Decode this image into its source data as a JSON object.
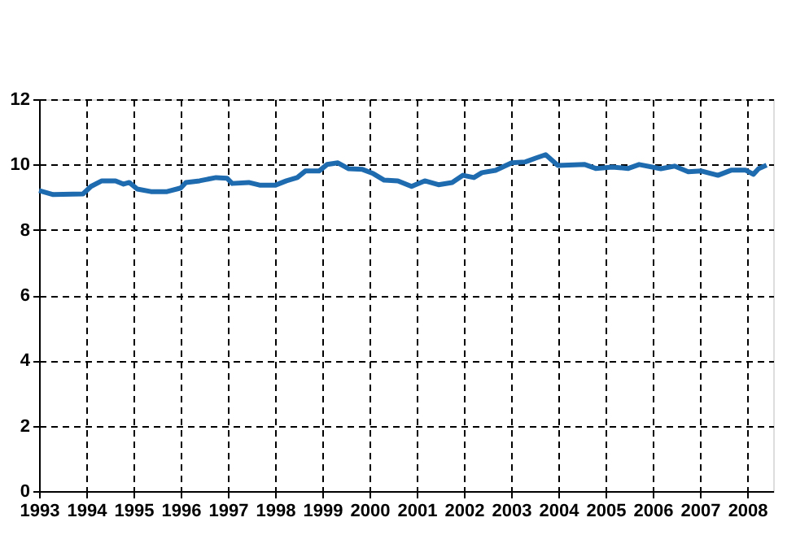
{
  "chart_data": {
    "type": "line",
    "xlim": [
      1993,
      2008.55
    ],
    "xticks": [
      1993,
      1994,
      1995,
      1996,
      1997,
      1998,
      1999,
      2000,
      2001,
      2002,
      2003,
      2004,
      2005,
      2006,
      2007,
      2008
    ],
    "ylim": [
      0,
      12
    ],
    "yticks": [
      0,
      2,
      4,
      6,
      8,
      10,
      12
    ],
    "grid": true,
    "marker": "none",
    "line_style": "solid",
    "series": [
      {
        "color": "#1f6bb0",
        "x": [
          1993.0,
          1993.3,
          1993.93,
          1994.1,
          1994.33,
          1994.62,
          1994.79,
          1994.91,
          1995.08,
          1995.37,
          1995.71,
          1996.0,
          1996.11,
          1996.4,
          1996.75,
          1996.98,
          1997.09,
          1997.44,
          1997.67,
          1998.01,
          1998.24,
          1998.47,
          1998.64,
          1998.93,
          1999.1,
          1999.33,
          1999.56,
          1999.85,
          2000.08,
          2000.31,
          2000.6,
          2000.89,
          2001.17,
          2001.46,
          2001.75,
          2001.98,
          2002.21,
          2002.38,
          2002.67,
          2003.01,
          2003.3,
          2003.53,
          2003.73,
          2003.99,
          2004.56,
          2004.79,
          2005.14,
          2005.48,
          2005.71,
          2006.17,
          2006.46,
          2006.75,
          2007.03,
          2007.38,
          2007.67,
          2007.96,
          2008.13,
          2008.24,
          2008.41
        ],
        "values": [
          9.2,
          9.08,
          9.1,
          9.33,
          9.5,
          9.5,
          9.4,
          9.45,
          9.25,
          9.17,
          9.17,
          9.28,
          9.45,
          9.5,
          9.6,
          9.58,
          9.42,
          9.45,
          9.37,
          9.37,
          9.5,
          9.6,
          9.8,
          9.8,
          10.0,
          10.05,
          9.87,
          9.85,
          9.72,
          9.52,
          9.5,
          9.33,
          9.5,
          9.38,
          9.45,
          9.67,
          9.6,
          9.75,
          9.82,
          10.05,
          10.08,
          10.2,
          10.3,
          9.97,
          10.0,
          9.88,
          9.92,
          9.88,
          10.0,
          9.87,
          9.95,
          9.78,
          9.8,
          9.67,
          9.83,
          9.83,
          9.7,
          9.87,
          9.98
        ]
      }
    ]
  }
}
